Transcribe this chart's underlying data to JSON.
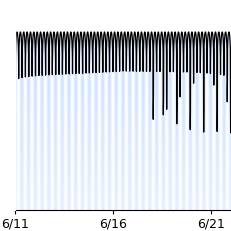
{
  "title": "",
  "xlabel": "",
  "ylabel": "",
  "xlim": [
    0,
    11.0
  ],
  "ylim": [
    -4.5,
    0.8
  ],
  "background_color": "#ffffff",
  "line_color": "#000000",
  "xtick_labels": [
    "6/11",
    "6/16",
    "6/21"
  ],
  "xtick_positions": [
    0.0,
    5.0,
    10.0
  ],
  "figsize": [
    2.32,
    2.32
  ],
  "dpi": 100,
  "n_cycles": 32,
  "n_points": 8000
}
